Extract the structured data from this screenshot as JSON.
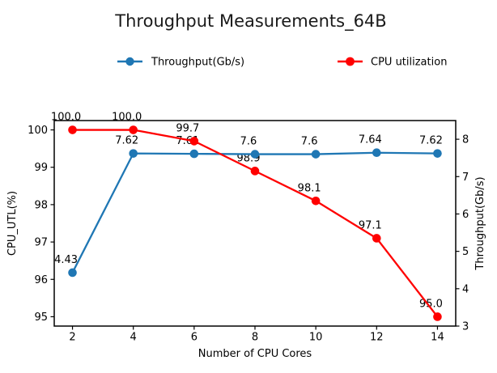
{
  "chart_data": {
    "type": "line",
    "title": "Throughput Measurements_64B",
    "xlabel": "Number of CPU Cores",
    "ylabel_left": "CPU_UTL(%)",
    "ylabel_right": "Throughput(Gb/s)",
    "x": [
      2,
      4,
      6,
      8,
      10,
      12,
      14
    ],
    "xticks": [
      2,
      4,
      6,
      8,
      10,
      12,
      14
    ],
    "xlim": [
      1.4,
      14.6
    ],
    "ylim_left": [
      94.75,
      100.25
    ],
    "ylim_right": [
      3,
      8.5
    ],
    "yticks_left": [
      95,
      96,
      97,
      98,
      99,
      100
    ],
    "yticks_right": [
      3,
      4,
      5,
      6,
      7,
      8
    ],
    "grid": false,
    "legend_position": "top-center",
    "series": [
      {
        "name": "Throughput(Gb/s)",
        "axis": "right",
        "color": "#1f77b4",
        "values": [
          4.43,
          7.62,
          7.61,
          7.6,
          7.6,
          7.64,
          7.62
        ],
        "point_labels": [
          "4.43",
          "7.62",
          "7.61",
          "7.6",
          "7.6",
          "7.64",
          "7.62"
        ]
      },
      {
        "name": "CPU utilization",
        "axis": "left",
        "color": "#ff0000",
        "values": [
          100.0,
          100.0,
          99.7,
          98.9,
          98.1,
          97.1,
          95.0
        ],
        "point_labels": [
          "100.0",
          "100.0",
          "99.7",
          "98.9",
          "98.1",
          "97.1",
          "95.0"
        ]
      }
    ],
    "colors": {
      "throughput": "#1f77b4",
      "cpu": "#ff0000",
      "frame": "#000000"
    }
  }
}
